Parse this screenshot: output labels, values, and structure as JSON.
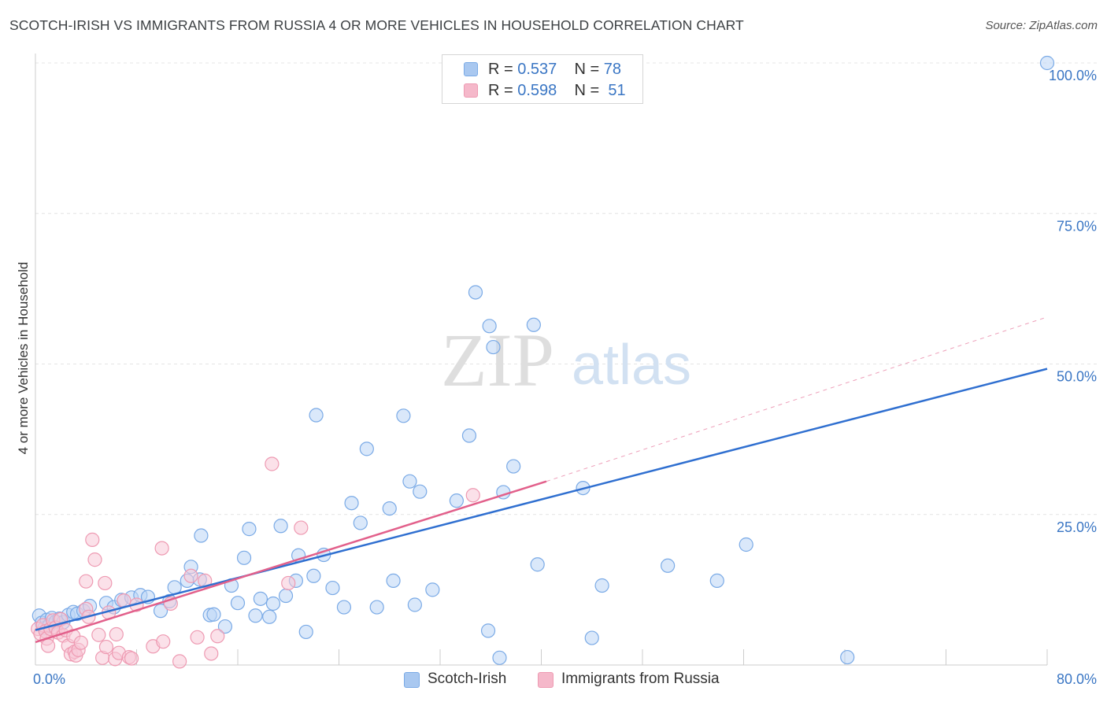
{
  "title": "SCOTCH-IRISH VS IMMIGRANTS FROM RUSSIA 4 OR MORE VEHICLES IN HOUSEHOLD CORRELATION CHART",
  "source": "Source: ZipAtlas.com",
  "watermark": {
    "zip": "ZIP",
    "atlas": "atlas"
  },
  "legend": {
    "rows": [
      {
        "r_label": "R = ",
        "r_value": "0.537",
        "n_label": "N = ",
        "n_value": "78",
        "color": "#a9c8f0"
      },
      {
        "r_label": "R = ",
        "r_value": "0.598",
        "n_label": "N = ",
        "n_value": "51",
        "color": "#f5b8ca"
      }
    ]
  },
  "bottom_legend": [
    {
      "label": "Scotch-Irish",
      "color": "#a9c8f0"
    },
    {
      "label": "Immigrants from Russia",
      "color": "#f5b8ca"
    }
  ],
  "chart_data": {
    "type": "scatter",
    "title": "SCOTCH-IRISH VS IMMIGRANTS FROM RUSSIA 4 OR MORE VEHICLES IN HOUSEHOLD CORRELATION CHART",
    "xlabel": "",
    "ylabel": "4 or more Vehicles in Household",
    "xlim": [
      0,
      80
    ],
    "ylim": [
      0,
      100
    ],
    "x_tick_labels": [
      "0.0%",
      "80.0%"
    ],
    "y_tick_labels": [
      "25.0%",
      "50.0%",
      "75.0%",
      "100.0%"
    ],
    "y_ticks": [
      25,
      50,
      75,
      100
    ],
    "grid": true,
    "series": [
      {
        "name": "Scotch-Irish",
        "color": "#7aaae6",
        "fill": "#bcd5f5",
        "line_color": "#2f6fd0",
        "trend": {
          "x": [
            0,
            80
          ],
          "y": [
            5.8,
            49.2
          ]
        },
        "points": [
          [
            0.3,
            8.2
          ],
          [
            0.5,
            7.0
          ],
          [
            0.7,
            6.1
          ],
          [
            0.9,
            7.5
          ],
          [
            1.1,
            6.6
          ],
          [
            1.3,
            7.8
          ],
          [
            1.6,
            7.2
          ],
          [
            1.9,
            7.7
          ],
          [
            2.2,
            7.1
          ],
          [
            2.6,
            8.3
          ],
          [
            3.0,
            8.8
          ],
          [
            3.3,
            8.5
          ],
          [
            3.8,
            9.0
          ],
          [
            4.3,
            9.8
          ],
          [
            5.6,
            10.3
          ],
          [
            6.2,
            9.6
          ],
          [
            6.8,
            10.8
          ],
          [
            7.6,
            11.2
          ],
          [
            8.3,
            11.6
          ],
          [
            8.9,
            11.3
          ],
          [
            9.9,
            9.0
          ],
          [
            10.6,
            10.6
          ],
          [
            11.0,
            12.9
          ],
          [
            12.0,
            14.0
          ],
          [
            12.3,
            16.3
          ],
          [
            13.0,
            14.2
          ],
          [
            13.1,
            21.5
          ],
          [
            13.8,
            8.3
          ],
          [
            14.1,
            8.4
          ],
          [
            15.0,
            6.4
          ],
          [
            15.5,
            13.2
          ],
          [
            16.0,
            10.3
          ],
          [
            16.5,
            17.8
          ],
          [
            16.9,
            22.6
          ],
          [
            17.4,
            8.2
          ],
          [
            17.8,
            11.0
          ],
          [
            18.5,
            8.0
          ],
          [
            18.8,
            10.2
          ],
          [
            19.4,
            23.1
          ],
          [
            19.8,
            11.5
          ],
          [
            20.6,
            14.0
          ],
          [
            20.8,
            18.2
          ],
          [
            21.4,
            5.5
          ],
          [
            22.0,
            14.8
          ],
          [
            22.2,
            41.5
          ],
          [
            22.8,
            18.3
          ],
          [
            23.5,
            12.8
          ],
          [
            24.4,
            9.6
          ],
          [
            25.0,
            26.9
          ],
          [
            25.7,
            23.6
          ],
          [
            26.2,
            35.9
          ],
          [
            27.0,
            9.6
          ],
          [
            28.0,
            26.0
          ],
          [
            28.3,
            14.0
          ],
          [
            29.1,
            41.4
          ],
          [
            29.6,
            30.5
          ],
          [
            30.0,
            10.0
          ],
          [
            30.4,
            28.8
          ],
          [
            31.4,
            12.5
          ],
          [
            33.3,
            27.3
          ],
          [
            34.3,
            38.1
          ],
          [
            34.8,
            61.9
          ],
          [
            35.8,
            5.7
          ],
          [
            35.9,
            56.3
          ],
          [
            36.2,
            52.8
          ],
          [
            36.7,
            1.2
          ],
          [
            37.0,
            28.7
          ],
          [
            37.8,
            33.0
          ],
          [
            39.4,
            56.5
          ],
          [
            39.7,
            16.7
          ],
          [
            43.3,
            29.4
          ],
          [
            44.0,
            4.5
          ],
          [
            44.8,
            13.2
          ],
          [
            50.0,
            16.5
          ],
          [
            53.9,
            14.0
          ],
          [
            56.2,
            20.0
          ],
          [
            64.2,
            1.3
          ],
          [
            80.0,
            100.0
          ]
        ]
      },
      {
        "name": "Immigrants from Russia",
        "color": "#ee9ab2",
        "fill": "#f8c9d7",
        "line_color": "#e2608b",
        "trend": {
          "x": [
            0,
            40.4
          ],
          "y": [
            3.8,
            30.5
          ]
        },
        "trend_dashed": {
          "x": [
            40.4,
            80
          ],
          "y": [
            30.5,
            57.8
          ]
        },
        "points": [
          [
            0.2,
            6.0
          ],
          [
            0.4,
            5.2
          ],
          [
            0.6,
            6.6
          ],
          [
            0.8,
            5.6
          ],
          [
            0.9,
            4.4
          ],
          [
            1.0,
            3.2
          ],
          [
            1.2,
            6.0
          ],
          [
            1.4,
            7.4
          ],
          [
            1.6,
            6.2
          ],
          [
            1.8,
            5.4
          ],
          [
            2.0,
            7.6
          ],
          [
            2.2,
            4.9
          ],
          [
            2.4,
            5.8
          ],
          [
            2.6,
            3.2
          ],
          [
            2.8,
            1.8
          ],
          [
            3.0,
            4.8
          ],
          [
            3.1,
            2.2
          ],
          [
            3.2,
            1.6
          ],
          [
            3.4,
            2.5
          ],
          [
            3.6,
            3.7
          ],
          [
            4.0,
            9.3
          ],
          [
            4.0,
            13.9
          ],
          [
            4.2,
            8.0
          ],
          [
            4.5,
            20.8
          ],
          [
            4.7,
            17.5
          ],
          [
            5.0,
            5.0
          ],
          [
            5.3,
            1.2
          ],
          [
            5.5,
            13.6
          ],
          [
            5.6,
            3.0
          ],
          [
            5.8,
            8.7
          ],
          [
            6.3,
            1.0
          ],
          [
            6.4,
            5.1
          ],
          [
            6.6,
            2.0
          ],
          [
            7.0,
            10.7
          ],
          [
            7.4,
            1.3
          ],
          [
            7.6,
            1.1
          ],
          [
            8.0,
            10.0
          ],
          [
            9.3,
            3.1
          ],
          [
            10.0,
            19.4
          ],
          [
            10.1,
            3.9
          ],
          [
            10.7,
            10.2
          ],
          [
            11.4,
            0.6
          ],
          [
            12.3,
            14.8
          ],
          [
            12.8,
            4.6
          ],
          [
            13.4,
            14.0
          ],
          [
            13.9,
            1.9
          ],
          [
            14.4,
            4.8
          ],
          [
            18.7,
            33.4
          ],
          [
            21.0,
            22.8
          ],
          [
            34.6,
            28.2
          ],
          [
            20.0,
            13.6
          ]
        ]
      }
    ]
  }
}
